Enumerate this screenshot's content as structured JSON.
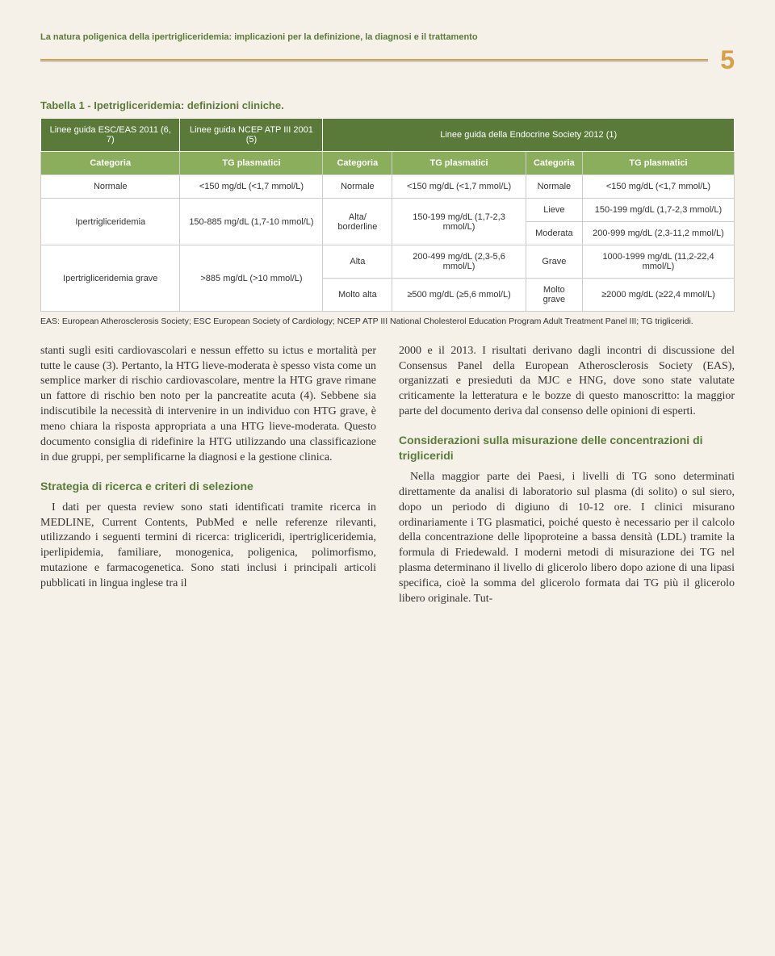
{
  "header": {
    "title": "La natura poligenica della ipertrigliceridemia: implicazioni per la definizione, la diagnosi e il trattamento",
    "page_number": "5"
  },
  "table": {
    "caption": "Tabella 1 - Ipetrigliceridemia: definizioni cliniche.",
    "header_row1": {
      "h1": "Linee guida ESC/EAS 2011 (6, 7)",
      "h2": "Linee guida NCEP ATP III 2001 (5)",
      "h3": "Linee guida della Endocrine Society 2012 (1)"
    },
    "header_row2": {
      "c1": "Categoria",
      "c2": "TG plasmatici",
      "c3": "Categoria",
      "c4": "TG plasmatici",
      "c5": "Categoria",
      "c6": "TG plasmatici"
    },
    "r1": {
      "c1": "Normale",
      "c2": "<150 mg/dL (<1,7 mmol/L)",
      "c3": "Normale",
      "c4": "<150 mg/dL (<1,7 mmol/L)",
      "c5": "Normale",
      "c6": "<150 mg/dL (<1,7 mmol/L)"
    },
    "r2": {
      "c1": "Ipertrigliceridemia",
      "c2": "150-885 mg/dL (1,7-10 mmol/L)",
      "c3": "Alta/ borderline",
      "c4": "150-199 mg/dL (1,7-2,3 mmol/L)",
      "c5a": "Lieve",
      "c6a": "150-199 mg/dL (1,7-2,3 mmol/L)",
      "c5b": "Moderata",
      "c6b": "200-999 mg/dL (2,3-11,2 mmol/L)"
    },
    "r3": {
      "c1": "Ipertrigliceridemia grave",
      "c2": ">885 mg/dL (>10 mmol/L)",
      "c3a": "Alta",
      "c4a": "200-499 mg/dL (2,3-5,6 mmol/L)",
      "c5a": "Grave",
      "c6a": "1000-1999 mg/dL (11,2-22,4 mmol/L)",
      "c3b": "Molto alta",
      "c4b": "≥500 mg/dL (≥5,6 mmol/L)",
      "c5b": "Molto grave",
      "c6b": "≥2000 mg/dL (≥22,4 mmol/L)"
    },
    "footnote": "EAS: European Atherosclerosis Society; ESC European Society of Cardiology; NCEP ATP III National Cholesterol Education Program Adult Treatment Panel III; TG trigliceridi."
  },
  "body": {
    "left_p1": "stanti sugli esiti cardiovascolari e nessun effetto su ictus e mortalità per tutte le cause (3). Pertanto, la HTG lieve-moderata è spesso vista come un semplice marker di rischio cardiovascolare, mentre la HTG grave rimane un fattore di rischio ben noto per la pancreatite acuta (4). Sebbene sia indiscutibile la necessità di intervenire in un individuo con HTG grave, è meno chiara la risposta appropriata a una HTG lieve-moderata. Questo documento consiglia di ridefinire la HTG utilizzando una classificazione in due gruppi, per semplificarne la diagnosi e la gestione clinica.",
    "left_h1": "Strategia di ricerca e criteri di selezione",
    "left_p2": "I dati per questa review sono stati identificati tramite ricerca in MEDLINE, Current Contents, PubMed e nelle referenze rilevanti, utilizzando i seguenti termini di ricerca: trigliceridi, ipertrigliceridemia, iperlipidemia, familiare, monogenica, poligenica, polimorfismo, mutazione e farmacogenetica. Sono stati inclusi i principali articoli pubblicati in lingua inglese tra il",
    "right_p1": "2000 e il 2013. I risultati derivano dagli incontri di discussione del Consensus Panel della European Atherosclerosis Society (EAS), organizzati e presieduti da MJC e HNG, dove sono state valutate criticamente la letteratura e le bozze di questo manoscritto: la maggior parte del documento deriva dal consenso delle opinioni di esperti.",
    "right_h1": "Considerazioni sulla misurazione delle concentrazioni di trigliceridi",
    "right_p2": "Nella maggior parte dei Paesi, i livelli di TG sono determinati direttamente da analisi di laboratorio sul plasma (di solito) o sul siero, dopo un periodo di digiuno di 10-12 ore. I clinici misurano ordinariamente i TG plasmatici, poiché questo è necessario per il calcolo della concentrazione delle lipoproteine a bassa densità (LDL) tramite la formula di Friedewald. I moderni metodi di misurazione dei TG nel plasma determinano il livello di glicerolo libero dopo azione di una lipasi specifica, cioè la somma del glicerolo formata dai TG più il glicerolo libero originale. Tut-"
  },
  "colors": {
    "green": "#5a7a3a",
    "light_green": "#8aae5c",
    "gold": "#d4a04a",
    "bg": "#f5f1e8"
  }
}
